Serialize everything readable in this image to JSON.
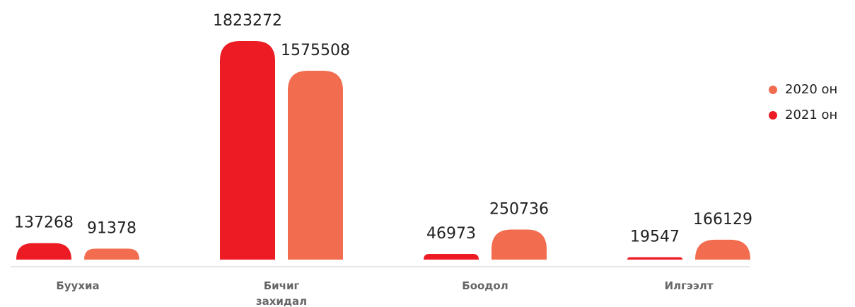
{
  "chart_data": {
    "type": "bar",
    "categories": [
      "Буухиа",
      "Бичиг захидал",
      "Боодол",
      "Илгээлт"
    ],
    "series": [
      {
        "name": "2021 он",
        "color": "#ed1c24",
        "values": [
          137268,
          1823272,
          46973,
          19547
        ]
      },
      {
        "name": "2020 он",
        "color": "#f26c4f",
        "values": [
          91378,
          1575508,
          250736,
          166129
        ]
      }
    ]
  }
}
